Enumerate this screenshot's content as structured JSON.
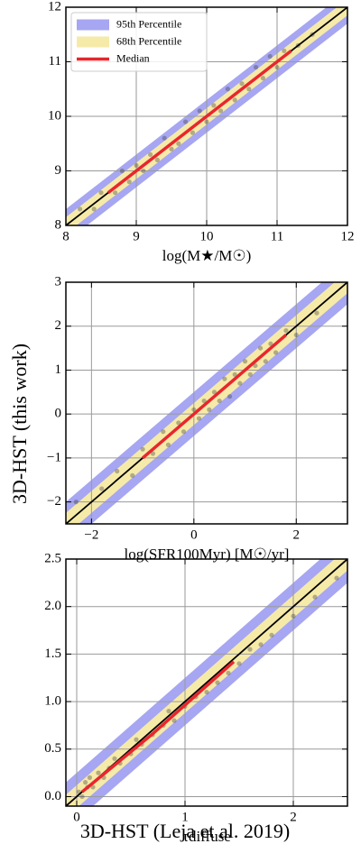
{
  "shared_ylabel": "3D-HST (this work)",
  "shared_xlabel": "3D-HST (Leja et al. 2019)",
  "chart_data": [
    {
      "type": "scatter",
      "xlabel": "log(M★/M☉)",
      "xlim": [
        8,
        12
      ],
      "ylim": [
        8,
        12
      ],
      "xticks": [
        8,
        9,
        10,
        11,
        12
      ],
      "yticks": [
        8,
        9,
        10,
        11,
        12
      ],
      "grid": true,
      "legend": "upper left",
      "series": [
        {
          "name": "95th Percentile",
          "type": "band",
          "color": "#a6a6f2",
          "x": [
            8,
            12
          ],
          "lower": [
            7.7,
            11.7
          ],
          "upper": [
            8.3,
            12.3
          ]
        },
        {
          "name": "68th Percentile",
          "type": "band",
          "color": "#f6eaa9",
          "x": [
            8,
            12
          ],
          "lower": [
            7.85,
            11.85
          ],
          "upper": [
            8.15,
            12.15
          ]
        },
        {
          "name": "Median",
          "type": "line",
          "color": "#e8262d",
          "x": [
            8.6,
            9.5,
            10.4,
            11.2
          ],
          "values": [
            8.6,
            9.5,
            10.4,
            11.2
          ]
        }
      ],
      "identity_line": {
        "color": "#000000",
        "x": [
          8,
          12
        ],
        "values": [
          8,
          12
        ]
      },
      "points": {
        "color": "#333333",
        "x": [
          8.2,
          8.4,
          8.5,
          8.7,
          8.8,
          8.9,
          9.0,
          9.1,
          9.2,
          9.3,
          9.4,
          9.5,
          9.6,
          9.7,
          9.8,
          9.9,
          10.0,
          10.1,
          10.2,
          10.3,
          10.4,
          10.5,
          10.6,
          10.7,
          10.8,
          10.9,
          11.0,
          11.1,
          11.3,
          11.5
        ],
        "y": [
          8.3,
          8.3,
          8.6,
          8.6,
          9.0,
          8.8,
          9.1,
          9.0,
          9.3,
          9.2,
          9.6,
          9.4,
          9.5,
          9.9,
          9.7,
          10.1,
          9.9,
          10.2,
          10.1,
          10.5,
          10.3,
          10.6,
          10.5,
          10.9,
          10.7,
          11.1,
          10.9,
          11.2,
          11.3,
          11.5
        ]
      }
    },
    {
      "type": "scatter",
      "xlabel": "log(SFR100Myr) [M☉/yr]",
      "xlim": [
        -2.5,
        3
      ],
      "ylim": [
        -2.5,
        3
      ],
      "xticks": [
        {
          "value": -2,
          "label": "−2"
        },
        0,
        2
      ],
      "yticks": [
        {
          "value": -2,
          "label": "−2"
        },
        {
          "value": -1,
          "label": "−1"
        },
        0,
        1,
        2,
        3
      ],
      "grid": true,
      "legend": false,
      "series": [
        {
          "name": "95th Percentile",
          "type": "band",
          "color": "#a6a6f2",
          "x": [
            -2.5,
            3
          ],
          "lower": [
            -3.0,
            2.5
          ],
          "upper": [
            -2.0,
            3.5
          ]
        },
        {
          "name": "68th Percentile",
          "type": "band",
          "color": "#f6eaa9",
          "x": [
            -2.5,
            3
          ],
          "lower": [
            -2.75,
            2.75
          ],
          "upper": [
            -2.25,
            3.25
          ]
        },
        {
          "name": "Median",
          "type": "line",
          "color": "#e8262d",
          "x": [
            -1.0,
            0.4,
            1.8
          ],
          "values": [
            -1.0,
            0.4,
            1.8
          ]
        }
      ],
      "identity_line": {
        "color": "#000000",
        "x": [
          -2.5,
          3
        ],
        "values": [
          -2.5,
          3
        ]
      },
      "points": {
        "color": "#333333",
        "x": [
          -2.3,
          -1.8,
          -1.5,
          -1.2,
          -1.0,
          -0.8,
          -0.6,
          -0.5,
          -0.3,
          -0.2,
          0,
          0.1,
          0.2,
          0.3,
          0.4,
          0.5,
          0.6,
          0.7,
          0.8,
          0.9,
          1.0,
          1.1,
          1.2,
          1.3,
          1.4,
          1.5,
          1.6,
          1.8,
          2.0,
          2.4
        ],
        "y": [
          -2.0,
          -1.7,
          -1.3,
          -1.4,
          -0.8,
          -0.9,
          -0.4,
          -0.7,
          -0.2,
          -0.4,
          0.1,
          -0.1,
          0.3,
          0.1,
          0.5,
          0.3,
          0.8,
          0.4,
          0.9,
          0.7,
          1.2,
          0.9,
          1.1,
          1.5,
          1.2,
          1.6,
          1.4,
          1.9,
          1.8,
          2.3
        ]
      }
    },
    {
      "type": "scatter",
      "xlabel": "τdiffuse",
      "xlim": [
        -0.1,
        2.5
      ],
      "ylim": [
        -0.1,
        2.5
      ],
      "xticks": [
        0,
        1,
        2
      ],
      "yticks": [
        {
          "value": 0,
          "label": "0.0"
        },
        0.5,
        {
          "value": 1,
          "label": "1.0"
        },
        1.5,
        {
          "value": 2,
          "label": "2.0"
        },
        2.5
      ],
      "grid": true,
      "legend": false,
      "series": [
        {
          "name": "95th Percentile",
          "type": "band",
          "color": "#a6a6f2",
          "x": [
            -0.1,
            2.5
          ],
          "lower": [
            -0.35,
            2.25
          ],
          "upper": [
            0.15,
            2.75
          ]
        },
        {
          "name": "68th Percentile",
          "type": "band",
          "color": "#f6eaa9",
          "x": [
            -0.1,
            2.5
          ],
          "lower": [
            -0.22,
            2.38
          ],
          "upper": [
            0.02,
            2.62
          ]
        },
        {
          "name": "Median",
          "type": "line",
          "color": "#e8262d",
          "x": [
            0.05,
            0.7,
            1.45
          ],
          "values": [
            0.05,
            0.66,
            1.42
          ]
        }
      ],
      "identity_line": {
        "color": "#000000",
        "x": [
          -0.1,
          2.5
        ],
        "values": [
          -0.1,
          2.5
        ]
      },
      "points": {
        "color": "#333333",
        "x": [
          0.02,
          0.05,
          0.08,
          0.1,
          0.12,
          0.15,
          0.2,
          0.25,
          0.3,
          0.35,
          0.4,
          0.5,
          0.55,
          0.6,
          0.7,
          0.8,
          0.85,
          0.9,
          1.0,
          1.1,
          1.2,
          1.3,
          1.4,
          1.5,
          1.6,
          1.7,
          1.8,
          2.0,
          2.2,
          2.4
        ],
        "y": [
          0.05,
          0.0,
          0.15,
          0.1,
          0.2,
          0.1,
          0.25,
          0.2,
          0.3,
          0.4,
          0.35,
          0.45,
          0.6,
          0.55,
          0.65,
          0.75,
          0.9,
          0.8,
          0.95,
          1.05,
          1.1,
          1.2,
          1.3,
          1.4,
          1.55,
          1.6,
          1.7,
          1.9,
          2.1,
          2.3
        ]
      }
    }
  ]
}
